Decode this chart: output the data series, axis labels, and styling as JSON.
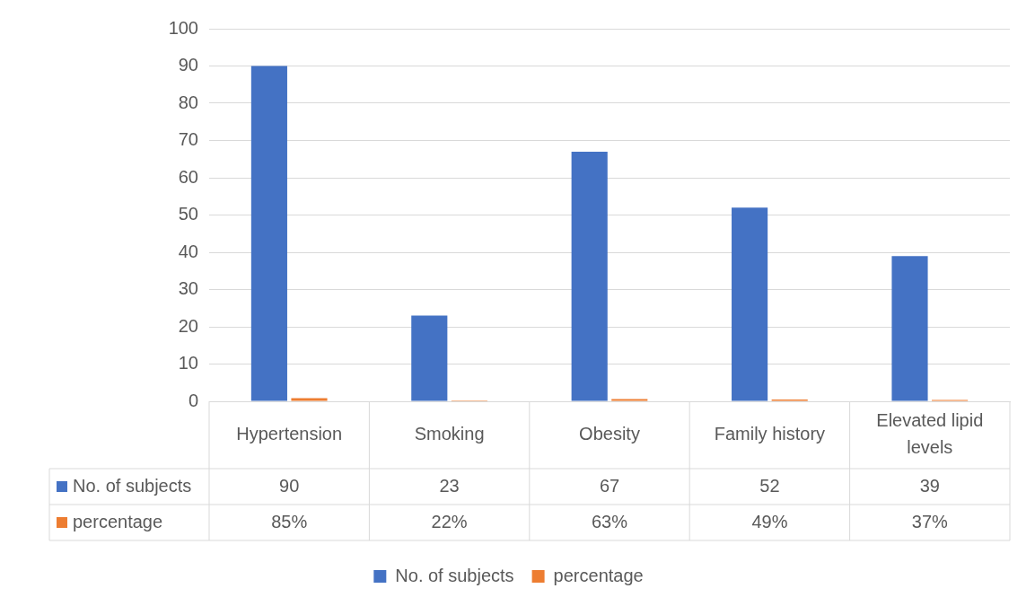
{
  "chart_data": {
    "type": "bar",
    "categories": [
      "Hypertension",
      "Smoking",
      "Obesity",
      "Family history",
      "Elevated lipid levels"
    ],
    "series": [
      {
        "name": "No. of subjects",
        "color": "#4472c4",
        "values": [
          90,
          23,
          67,
          52,
          39
        ],
        "value_labels": [
          "90",
          "23",
          "67",
          "52",
          "39"
        ]
      },
      {
        "name": "percentage",
        "color": "#ed7d31",
        "values": [
          0.85,
          0.22,
          0.63,
          0.49,
          0.37
        ],
        "value_labels": [
          "85%",
          "22%",
          "63%",
          "49%",
          "37%"
        ]
      }
    ],
    "ylim": [
      0,
      100
    ],
    "yticks": [
      0,
      10,
      20,
      30,
      40,
      50,
      60,
      70,
      80,
      90,
      100
    ],
    "grid": "y",
    "legend": "bottom"
  }
}
